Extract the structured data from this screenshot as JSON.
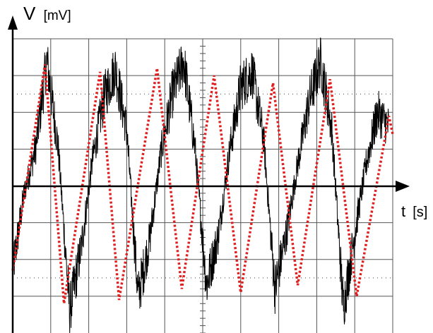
{
  "chart_data": {
    "type": "line",
    "title": "",
    "ylabel": "V",
    "yunit": "[mV]",
    "xlabel": "t",
    "xunit": "[s]",
    "grid": true,
    "grid_divisions": {
      "x": 10,
      "y": 8
    },
    "xlim": [
      0,
      10
    ],
    "ylim": [
      -4,
      4
    ],
    "series": [
      {
        "style": "noisy-signal",
        "color": "#000000",
        "x": [
          0.0,
          0.3,
          0.6,
          0.9,
          1.2,
          1.5,
          1.8,
          2.1,
          2.4,
          2.7,
          3.0,
          3.3,
          3.6,
          3.9,
          4.2,
          4.5,
          4.8,
          5.1,
          5.4,
          5.7,
          6.0,
          6.3,
          6.6,
          6.9,
          7.2,
          7.5,
          7.8,
          8.1,
          8.4,
          8.7,
          9.0,
          9.3,
          9.6,
          9.9
        ],
        "y": [
          -2.3,
          -0.2,
          1.0,
          3.4,
          1.0,
          -3.4,
          -1.7,
          0.7,
          2.4,
          3.2,
          1.5,
          -3.0,
          -1.5,
          0.9,
          2.5,
          3.4,
          1.0,
          -2.7,
          -1.4,
          0.9,
          2.7,
          3.1,
          1.3,
          -2.8,
          -1.3,
          0.6,
          2.3,
          3.4,
          1.5,
          -3.3,
          -1.3,
          0.6,
          2.0,
          1.6
        ]
      },
      {
        "style": "fitted-triangle",
        "color": "#e02020",
        "dashed": true,
        "x": [
          0.0,
          0.85,
          1.35,
          2.3,
          2.8,
          3.8,
          4.45,
          5.3,
          6.0,
          6.85,
          7.5,
          8.35,
          9.05,
          9.9,
          10.0
        ],
        "y": [
          -2.3,
          3.3,
          -3.2,
          3.1,
          -3.1,
          3.2,
          -2.8,
          3.0,
          -2.9,
          2.8,
          -2.7,
          2.9,
          -3.0,
          1.9,
          1.4
        ]
      }
    ]
  }
}
